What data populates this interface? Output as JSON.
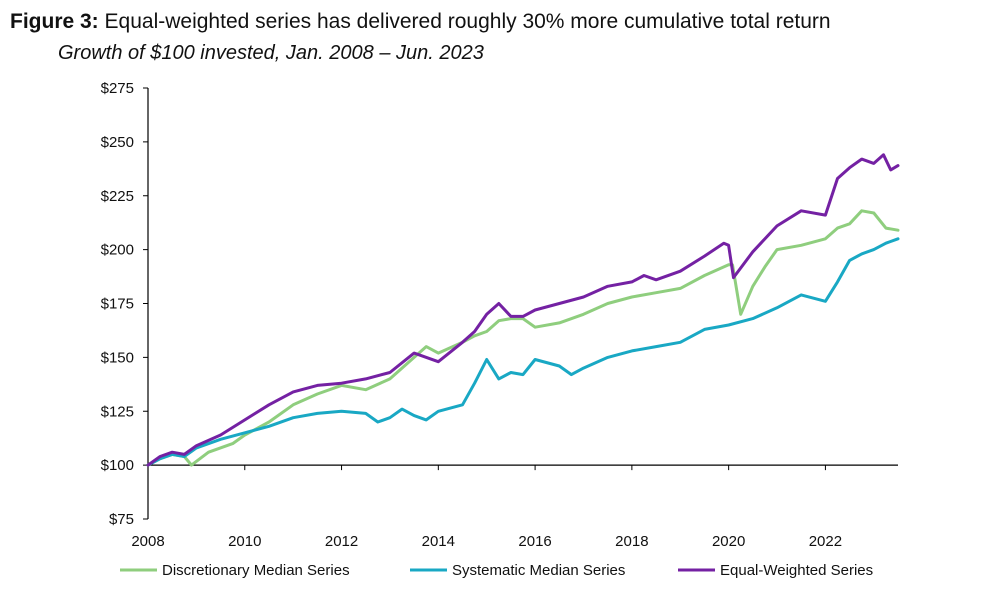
{
  "header": {
    "figure_label": "Figure 3:",
    "title_text": "Equal-weighted series has delivered roughly 30% more cumulative total return",
    "subtitle": "Growth of $100 invested, Jan. 2008 – Jun. 2023"
  },
  "colors": {
    "discretionary": "#8fce7e",
    "systematic": "#19a8c4",
    "equal_weighted": "#7421a3",
    "axis": "#000000"
  },
  "chart_data": {
    "type": "line",
    "title": "Equal-weighted series has delivered roughly 30% more cumulative total return",
    "subtitle": "Growth of $100 invested, Jan. 2008 – Jun. 2023",
    "xlabel": "",
    "ylabel": "",
    "xlim": [
      2008.0,
      2023.5
    ],
    "ylim": [
      75,
      275
    ],
    "baseline": 100,
    "x_ticks": [
      2008,
      2010,
      2012,
      2014,
      2016,
      2018,
      2020,
      2022
    ],
    "x_tick_labels": [
      "2008",
      "2010",
      "2012",
      "2014",
      "2016",
      "2018",
      "2020",
      "2022"
    ],
    "y_ticks": [
      75,
      100,
      125,
      150,
      175,
      200,
      225,
      250,
      275
    ],
    "y_tick_labels": [
      "$75",
      "$100",
      "$125",
      "$150",
      "$175",
      "$200",
      "$225",
      "$250",
      "$275"
    ],
    "grid": false,
    "legend": "bottom",
    "series": [
      {
        "name": "Discretionary Median Series",
        "x": [
          2008.0,
          2008.25,
          2008.5,
          2008.75,
          2008.9,
          2009.25,
          2009.75,
          2010.0,
          2010.5,
          2011.0,
          2011.5,
          2012.0,
          2012.5,
          2013.0,
          2013.25,
          2013.5,
          2013.75,
          2014.0,
          2014.5,
          2014.75,
          2015.0,
          2015.25,
          2015.5,
          2015.75,
          2016.0,
          2016.5,
          2017.0,
          2017.5,
          2018.0,
          2018.5,
          2019.0,
          2019.5,
          2020.0,
          2020.08,
          2020.25,
          2020.5,
          2020.75,
          2021.0,
          2021.5,
          2022.0,
          2022.25,
          2022.5,
          2022.75,
          2023.0,
          2023.25,
          2023.5
        ],
        "values": [
          100,
          103,
          105,
          104,
          100,
          106,
          110,
          114,
          120,
          128,
          133,
          137,
          135,
          140,
          145,
          150,
          155,
          152,
          157,
          160,
          162,
          167,
          168,
          168,
          164,
          166,
          170,
          175,
          178,
          180,
          182,
          188,
          193,
          193,
          170,
          183,
          192,
          200,
          202,
          205,
          210,
          212,
          218,
          217,
          210,
          209
        ]
      },
      {
        "name": "Systematic Median Series",
        "x": [
          2008.0,
          2008.25,
          2008.5,
          2008.75,
          2009.0,
          2009.5,
          2010.0,
          2010.5,
          2011.0,
          2011.5,
          2012.0,
          2012.5,
          2012.75,
          2013.0,
          2013.25,
          2013.5,
          2013.75,
          2014.0,
          2014.5,
          2014.75,
          2015.0,
          2015.25,
          2015.5,
          2015.75,
          2016.0,
          2016.5,
          2016.75,
          2017.0,
          2017.5,
          2018.0,
          2018.5,
          2019.0,
          2019.5,
          2020.0,
          2020.5,
          2021.0,
          2021.5,
          2022.0,
          2022.25,
          2022.5,
          2022.75,
          2023.0,
          2023.25,
          2023.5
        ],
        "values": [
          100,
          103,
          105,
          104,
          108,
          112,
          115,
          118,
          122,
          124,
          125,
          124,
          120,
          122,
          126,
          123,
          121,
          125,
          128,
          138,
          149,
          140,
          143,
          142,
          149,
          146,
          142,
          145,
          150,
          153,
          155,
          157,
          163,
          165,
          168,
          173,
          179,
          176,
          185,
          195,
          198,
          200,
          203,
          205
        ]
      },
      {
        "name": "Equal-Weighted Series",
        "x": [
          2008.0,
          2008.25,
          2008.5,
          2008.75,
          2009.0,
          2009.5,
          2010.0,
          2010.5,
          2011.0,
          2011.5,
          2012.0,
          2012.5,
          2013.0,
          2013.5,
          2014.0,
          2014.5,
          2014.75,
          2015.0,
          2015.25,
          2015.5,
          2015.75,
          2016.0,
          2016.5,
          2017.0,
          2017.5,
          2018.0,
          2018.25,
          2018.5,
          2019.0,
          2019.5,
          2019.9,
          2020.0,
          2020.1,
          2020.5,
          2021.0,
          2021.5,
          2022.0,
          2022.25,
          2022.5,
          2022.75,
          2023.0,
          2023.2,
          2023.35,
          2023.5
        ],
        "values": [
          100,
          104,
          106,
          105,
          109,
          114,
          121,
          128,
          134,
          137,
          138,
          140,
          143,
          152,
          148,
          157,
          162,
          170,
          175,
          169,
          169,
          172,
          175,
          178,
          183,
          185,
          188,
          186,
          190,
          197,
          203,
          202,
          187,
          199,
          211,
          218,
          216,
          233,
          238,
          242,
          240,
          244,
          237,
          239
        ]
      }
    ]
  }
}
